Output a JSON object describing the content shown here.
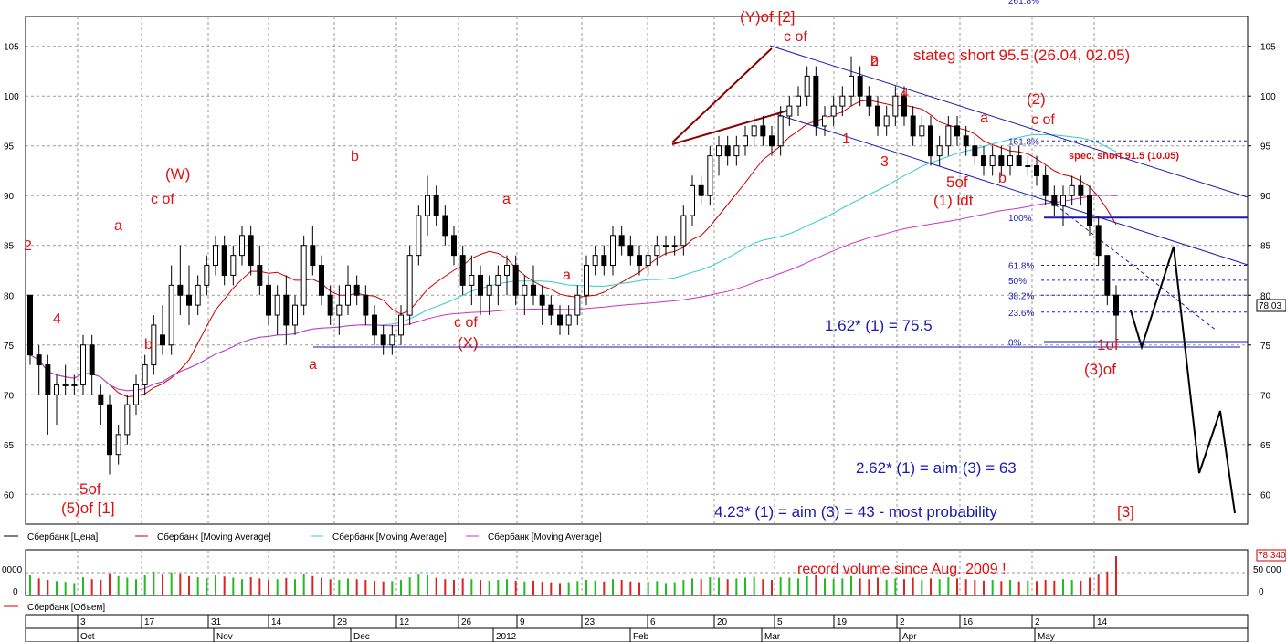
{
  "chart_data": {
    "type": "candlestick",
    "price_panel": {
      "ylim": [
        57,
        108
      ],
      "y_ticks": [
        "60",
        "65",
        "70",
        "75",
        "80",
        "85",
        "90",
        "95",
        "100",
        "105"
      ],
      "current_price_label": "78,03",
      "ohlc": [
        [
          80,
          80,
          73,
          74
        ],
        [
          74,
          75,
          70,
          73
        ],
        [
          73,
          74,
          66,
          70
        ],
        [
          70,
          72,
          67,
          71
        ],
        [
          71,
          73,
          70,
          71
        ],
        [
          71,
          72,
          70,
          71
        ],
        [
          71,
          76,
          70,
          75
        ],
        [
          75,
          76,
          70,
          72
        ],
        [
          70,
          71,
          67,
          69
        ],
        [
          69,
          70,
          62,
          64
        ],
        [
          64,
          67,
          63,
          66
        ],
        [
          66,
          70,
          65,
          69
        ],
        [
          69,
          72,
          68,
          71
        ],
        [
          71,
          74,
          70,
          73
        ],
        [
          73,
          78,
          72,
          77
        ],
        [
          76,
          79,
          74,
          75
        ],
        [
          75,
          83,
          74,
          81
        ],
        [
          81,
          85,
          78,
          80
        ],
        [
          80,
          83,
          77,
          79
        ],
        [
          79,
          82,
          78,
          81
        ],
        [
          81,
          84,
          80,
          83
        ],
        [
          83,
          86,
          82,
          85
        ],
        [
          85,
          86,
          81,
          82
        ],
        [
          82,
          85,
          81,
          84
        ],
        [
          84,
          87,
          83,
          86
        ],
        [
          86,
          87,
          82,
          83
        ],
        [
          83,
          85,
          80,
          81
        ],
        [
          81,
          82,
          77,
          78
        ],
        [
          78,
          81,
          76,
          80
        ],
        [
          80,
          82,
          75,
          77
        ],
        [
          77,
          80,
          76,
          79
        ],
        [
          79,
          86,
          78,
          85
        ],
        [
          85,
          87,
          82,
          83
        ],
        [
          83,
          84,
          79,
          80
        ],
        [
          80,
          81,
          77,
          78
        ],
        [
          78,
          81,
          76,
          79
        ],
        [
          79,
          83,
          78,
          81
        ],
        [
          81,
          82,
          79,
          80
        ],
        [
          80,
          81,
          77,
          78
        ],
        [
          78,
          79,
          75,
          76
        ],
        [
          76,
          77,
          74,
          75
        ],
        [
          75,
          77,
          74,
          76
        ],
        [
          76,
          79,
          75,
          78
        ],
        [
          78,
          85,
          77,
          84
        ],
        [
          84,
          89,
          83,
          88
        ],
        [
          88,
          92,
          86,
          90
        ],
        [
          90,
          91,
          87,
          88
        ],
        [
          88,
          89,
          85,
          86
        ],
        [
          86,
          87,
          83,
          84
        ],
        [
          84,
          85,
          80,
          81
        ],
        [
          81,
          84,
          79,
          82
        ],
        [
          82,
          83,
          78,
          80
        ],
        [
          80,
          82,
          78,
          81
        ],
        [
          81,
          83,
          79,
          82
        ],
        [
          82,
          84,
          80,
          83
        ],
        [
          83,
          84,
          79,
          80
        ],
        [
          80,
          82,
          78,
          81
        ],
        [
          81,
          83,
          79,
          80
        ],
        [
          80,
          81,
          77,
          79
        ],
        [
          79,
          80,
          77,
          78
        ],
        [
          78,
          79,
          76,
          77
        ],
        [
          77,
          79,
          76,
          78
        ],
        [
          78,
          81,
          77,
          80
        ],
        [
          80,
          84,
          79,
          83
        ],
        [
          83,
          85,
          82,
          84
        ],
        [
          84,
          85,
          82,
          83
        ],
        [
          83,
          87,
          82,
          86
        ],
        [
          86,
          87,
          84,
          85
        ],
        [
          85,
          86,
          83,
          84
        ],
        [
          84,
          85,
          82,
          83
        ],
        [
          83,
          85,
          82,
          84
        ],
        [
          84,
          86,
          83,
          85
        ],
        [
          85,
          86,
          84,
          85
        ],
        [
          85,
          86,
          84,
          85
        ],
        [
          85,
          89,
          84,
          88
        ],
        [
          88,
          92,
          87,
          91
        ],
        [
          91,
          92,
          89,
          90
        ],
        [
          90,
          95,
          89,
          94
        ],
        [
          94,
          96,
          92,
          95
        ],
        [
          95,
          96,
          93,
          94
        ],
        [
          94,
          96,
          93,
          95
        ],
        [
          95,
          97,
          94,
          96
        ],
        [
          96,
          98,
          95,
          97
        ],
        [
          97,
          98,
          95,
          96
        ],
        [
          96,
          97,
          94,
          95
        ],
        [
          95,
          99,
          94,
          98
        ],
        [
          98,
          100,
          97,
          99
        ],
        [
          99,
          101,
          98,
          100
        ],
        [
          100,
          103,
          99,
          102
        ],
        [
          102,
          103,
          96,
          97
        ],
        [
          97,
          99,
          96,
          98
        ],
        [
          98,
          100,
          97,
          99
        ],
        [
          99,
          101,
          98,
          100
        ],
        [
          100,
          104,
          99,
          102
        ],
        [
          102,
          103,
          99,
          100
        ],
        [
          100,
          101,
          98,
          99
        ],
        [
          99,
          100,
          96,
          97
        ],
        [
          97,
          99,
          96,
          98
        ],
        [
          98,
          101,
          97,
          100
        ],
        [
          100,
          101,
          97,
          98
        ],
        [
          98,
          99,
          95,
          96
        ],
        [
          96,
          98,
          95,
          97
        ],
        [
          97,
          98,
          93,
          94
        ],
        [
          94,
          96,
          93,
          95
        ],
        [
          95,
          98,
          94,
          97
        ],
        [
          97,
          98,
          95,
          96
        ],
        [
          96,
          97,
          94,
          95
        ],
        [
          95,
          96,
          93,
          94
        ],
        [
          94,
          95,
          92,
          93
        ],
        [
          93,
          95,
          92,
          94
        ],
        [
          94,
          95,
          92,
          93
        ],
        [
          93,
          95,
          92,
          94
        ],
        [
          94,
          95,
          93,
          93
        ],
        [
          93,
          94,
          92,
          93
        ],
        [
          93,
          94,
          91,
          92
        ],
        [
          92,
          93,
          89,
          90
        ],
        [
          90,
          91,
          88,
          89
        ],
        [
          89,
          91,
          87,
          90
        ],
        [
          90,
          92,
          89,
          91
        ],
        [
          91,
          92,
          89,
          90
        ],
        [
          90,
          91,
          86,
          87
        ],
        [
          87,
          88,
          83,
          84
        ],
        [
          84,
          84,
          79,
          80
        ],
        [
          80,
          81,
          75,
          78
        ]
      ],
      "series": [
        {
          "name": "Сбербанк [Цена]",
          "color": "#000000"
        },
        {
          "name": "Сбербанк [Moving Average]",
          "color": "#cc0000"
        },
        {
          "name": "Сбербанк [Moving Average]",
          "color": "#33cccc"
        },
        {
          "name": "Сбербанк [Moving Average]",
          "color": "#cc33cc"
        }
      ],
      "fibonacci_levels": [
        {
          "label": "161.8%",
          "value": 95.5
        },
        {
          "label": "100%",
          "value": 87.8
        },
        {
          "label": "61.8%",
          "value": 83
        },
        {
          "label": "50%",
          "value": 81.5
        },
        {
          "label": "38.2%",
          "value": 80
        },
        {
          "label": "23.6%",
          "value": 78.3
        },
        {
          "label": "0%",
          "value": 75.3
        }
      ],
      "top_partial_label": "261.8%"
    },
    "volume_panel": {
      "legend": "Сбербанк [Объем]",
      "y_ticks": [
        "0",
        "50 000",
        "",
        "0000"
      ],
      "current_volume_label": "78 340",
      "note": "record volume since Aug. 2009 !",
      "values": [
        50,
        42,
        38,
        35,
        33,
        30,
        45,
        40,
        38,
        55,
        48,
        44,
        40,
        50,
        60,
        52,
        58,
        55,
        48,
        45,
        42,
        50,
        47,
        44,
        40,
        45,
        42,
        38,
        40,
        43,
        40,
        55,
        48,
        44,
        40,
        38,
        42,
        40,
        38,
        36,
        34,
        35,
        38,
        45,
        52,
        50,
        44,
        40,
        38,
        42,
        40,
        38,
        36,
        38,
        40,
        36,
        34,
        36,
        33,
        32,
        30,
        32,
        35,
        38,
        36,
        34,
        40,
        38,
        34,
        32,
        33,
        35,
        30,
        32,
        38,
        42,
        40,
        45,
        44,
        40,
        42,
        44,
        46,
        40,
        38,
        45,
        44,
        42,
        48,
        50,
        42,
        40,
        42,
        48,
        42,
        40,
        44,
        38,
        42,
        40,
        44,
        38,
        42,
        40,
        45,
        42,
        40,
        38,
        36,
        38,
        35,
        38,
        34,
        36,
        35,
        38,
        36,
        40,
        38,
        36,
        44,
        52,
        60,
        100
      ]
    },
    "x_axis": {
      "top_ticks": [
        "3",
        "17",
        "31",
        "14",
        "28",
        "12",
        "26",
        "9",
        "23",
        "6",
        "20",
        "5",
        "19",
        "2",
        "16",
        "2",
        "14"
      ],
      "months": [
        "Oct",
        "Nov",
        "Dec",
        "2012",
        "Feb",
        "Mar",
        "Apr",
        "May"
      ]
    },
    "annotations": {
      "elliott_red": [
        "2",
        "4",
        "5of",
        "(5)of [1]",
        "a",
        "b",
        "(W)",
        "c of",
        "b",
        "a",
        "a",
        "c of",
        "(X)",
        "a",
        "b",
        "(Y)of [2]",
        "c of",
        "2",
        "4",
        "1",
        "3",
        "a",
        "b",
        "5of",
        "(1) ldt",
        "(2)",
        "c of",
        "1of",
        "(3)of",
        "[3]"
      ],
      "blue_text": [
        "1.62* (1) = 75.5",
        "2.62* (1) = aim (3) = 63",
        "4.23* (1) = aim (3) = 43 - most probability"
      ],
      "strategy_text": [
        "stateg short 95.5 (26.04, 02.05)",
        "spec. short 91.5 (10.05)"
      ]
    }
  }
}
